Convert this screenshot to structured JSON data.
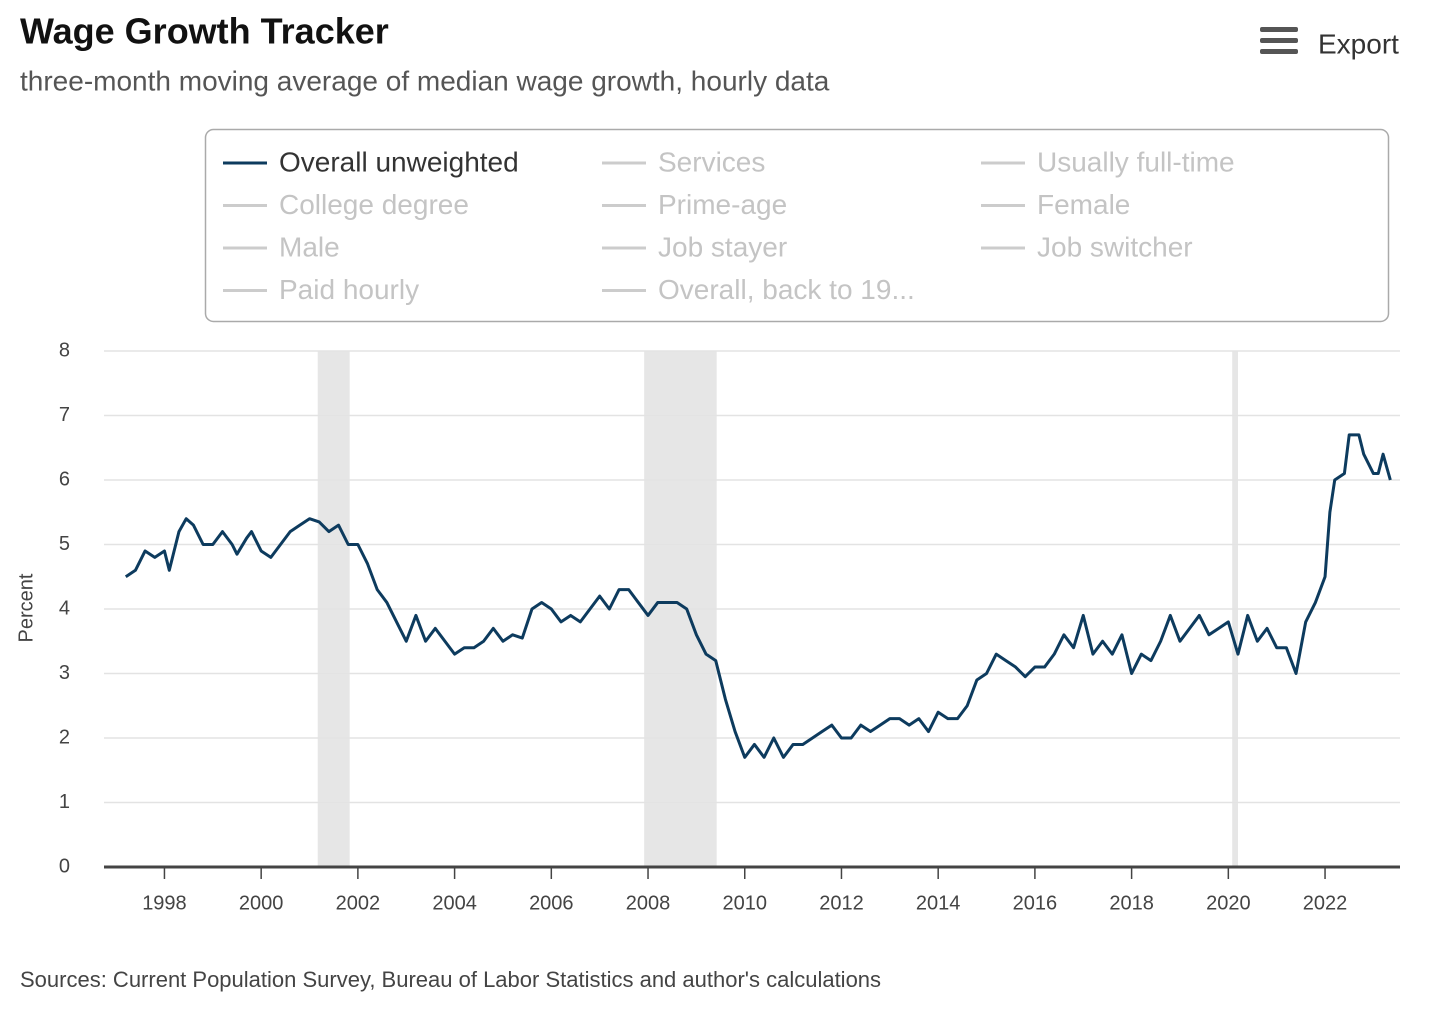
{
  "chart_data": {
    "type": "line",
    "title": "Wage Growth Tracker",
    "subtitle": "three-month moving average of median wage growth, hourly data",
    "y_label": "Percent",
    "source": "Sources: Current Population Survey, Bureau of Labor Statistics and author's calculations",
    "export_label": "Export",
    "xlim": [
      1996.75,
      2023.55
    ],
    "xticks": [
      1998,
      2000,
      2002,
      2004,
      2006,
      2008,
      2010,
      2012,
      2014,
      2016,
      2018,
      2020,
      2022
    ],
    "ylim": [
      0,
      8
    ],
    "yticks": [
      0,
      1,
      2,
      3,
      4,
      5,
      6,
      7,
      8
    ],
    "grid": true,
    "recession_color": "#e6e6e6",
    "recessions": [
      [
        2001.17,
        2001.83
      ],
      [
        2007.92,
        2009.42
      ],
      [
        2020.08,
        2020.2
      ]
    ],
    "x": [
      1997.2,
      1997.4,
      1997.6,
      1997.8,
      1998.0,
      1998.1,
      1998.3,
      1998.45,
      1998.6,
      1998.8,
      1999.0,
      1999.2,
      1999.4,
      1999.5,
      1999.7,
      1999.8,
      2000.0,
      2000.2,
      2000.4,
      2000.6,
      2000.8,
      2001.0,
      2001.2,
      2001.4,
      2001.6,
      2001.8,
      2002.0,
      2002.2,
      2002.4,
      2002.6,
      2002.8,
      2003.0,
      2003.2,
      2003.4,
      2003.6,
      2003.8,
      2004.0,
      2004.2,
      2004.4,
      2004.6,
      2004.8,
      2005.0,
      2005.2,
      2005.4,
      2005.6,
      2005.8,
      2006.0,
      2006.2,
      2006.4,
      2006.6,
      2006.8,
      2007.0,
      2007.2,
      2007.4,
      2007.6,
      2007.8,
      2008.0,
      2008.2,
      2008.4,
      2008.6,
      2008.8,
      2009.0,
      2009.2,
      2009.4,
      2009.6,
      2009.8,
      2010.0,
      2010.2,
      2010.4,
      2010.6,
      2010.8,
      2011.0,
      2011.2,
      2011.4,
      2011.6,
      2011.8,
      2012.0,
      2012.2,
      2012.4,
      2012.6,
      2012.8,
      2013.0,
      2013.2,
      2013.4,
      2013.6,
      2013.8,
      2014.0,
      2014.2,
      2014.4,
      2014.6,
      2014.8,
      2015.0,
      2015.2,
      2015.4,
      2015.6,
      2015.8,
      2016.0,
      2016.2,
      2016.4,
      2016.6,
      2016.8,
      2017.0,
      2017.2,
      2017.4,
      2017.6,
      2017.8,
      2018.0,
      2018.2,
      2018.4,
      2018.6,
      2018.8,
      2019.0,
      2019.2,
      2019.4,
      2019.6,
      2019.8,
      2020.0,
      2020.2,
      2020.4,
      2020.6,
      2020.8,
      2021.0,
      2021.2,
      2021.4,
      2021.6,
      2021.8,
      2022.0,
      2022.1,
      2022.2,
      2022.4,
      2022.5,
      2022.7,
      2022.8,
      2023.0,
      2023.1,
      2023.2,
      2023.35
    ],
    "series": [
      {
        "name": "Overall unweighted",
        "color": "#0d3b5e",
        "visible": true,
        "values": [
          4.5,
          4.6,
          4.9,
          4.8,
          4.9,
          4.6,
          5.2,
          5.4,
          5.3,
          5.0,
          5.0,
          5.2,
          5.0,
          4.85,
          5.1,
          5.2,
          4.9,
          4.8,
          5.0,
          5.2,
          5.3,
          5.4,
          5.35,
          5.2,
          5.3,
          5.0,
          5.0,
          4.7,
          4.3,
          4.1,
          3.8,
          3.5,
          3.9,
          3.5,
          3.7,
          3.5,
          3.3,
          3.4,
          3.4,
          3.5,
          3.7,
          3.5,
          3.6,
          3.55,
          4.0,
          4.1,
          4.0,
          3.8,
          3.9,
          3.8,
          4.0,
          4.2,
          4.0,
          4.3,
          4.3,
          4.1,
          3.9,
          4.1,
          4.1,
          4.1,
          4.0,
          3.6,
          3.3,
          3.2,
          2.6,
          2.1,
          1.7,
          1.9,
          1.7,
          2.0,
          1.7,
          1.9,
          1.9,
          2.0,
          2.1,
          2.2,
          2.0,
          2.0,
          2.2,
          2.1,
          2.2,
          2.3,
          2.3,
          2.2,
          2.3,
          2.1,
          2.4,
          2.3,
          2.3,
          2.5,
          2.9,
          3.0,
          3.3,
          3.2,
          3.1,
          2.95,
          3.1,
          3.1,
          3.3,
          3.6,
          3.4,
          3.9,
          3.3,
          3.5,
          3.3,
          3.6,
          3.0,
          3.3,
          3.2,
          3.5,
          3.9,
          3.5,
          3.7,
          3.9,
          3.6,
          3.7,
          3.8,
          3.3,
          3.9,
          3.5,
          3.7,
          3.4,
          3.4,
          3.0,
          3.8,
          4.1,
          4.5,
          5.5,
          6.0,
          6.1,
          6.7,
          6.7,
          6.4,
          6.1,
          6.1,
          6.4,
          6.0
        ]
      },
      {
        "name": "Services",
        "color": "#cccccc",
        "visible": false
      },
      {
        "name": "Usually full-time",
        "color": "#cccccc",
        "visible": false
      },
      {
        "name": "College degree",
        "color": "#cccccc",
        "visible": false
      },
      {
        "name": "Prime-age",
        "color": "#cccccc",
        "visible": false
      },
      {
        "name": "Female",
        "color": "#cccccc",
        "visible": false
      },
      {
        "name": "Male",
        "color": "#cccccc",
        "visible": false
      },
      {
        "name": "Job stayer",
        "color": "#cccccc",
        "visible": false
      },
      {
        "name": "Job switcher",
        "color": "#cccccc",
        "visible": false
      },
      {
        "name": "Paid hourly",
        "color": "#cccccc",
        "visible": false
      },
      {
        "name": "Overall, back to 19...",
        "color": "#cccccc",
        "visible": false
      }
    ]
  }
}
